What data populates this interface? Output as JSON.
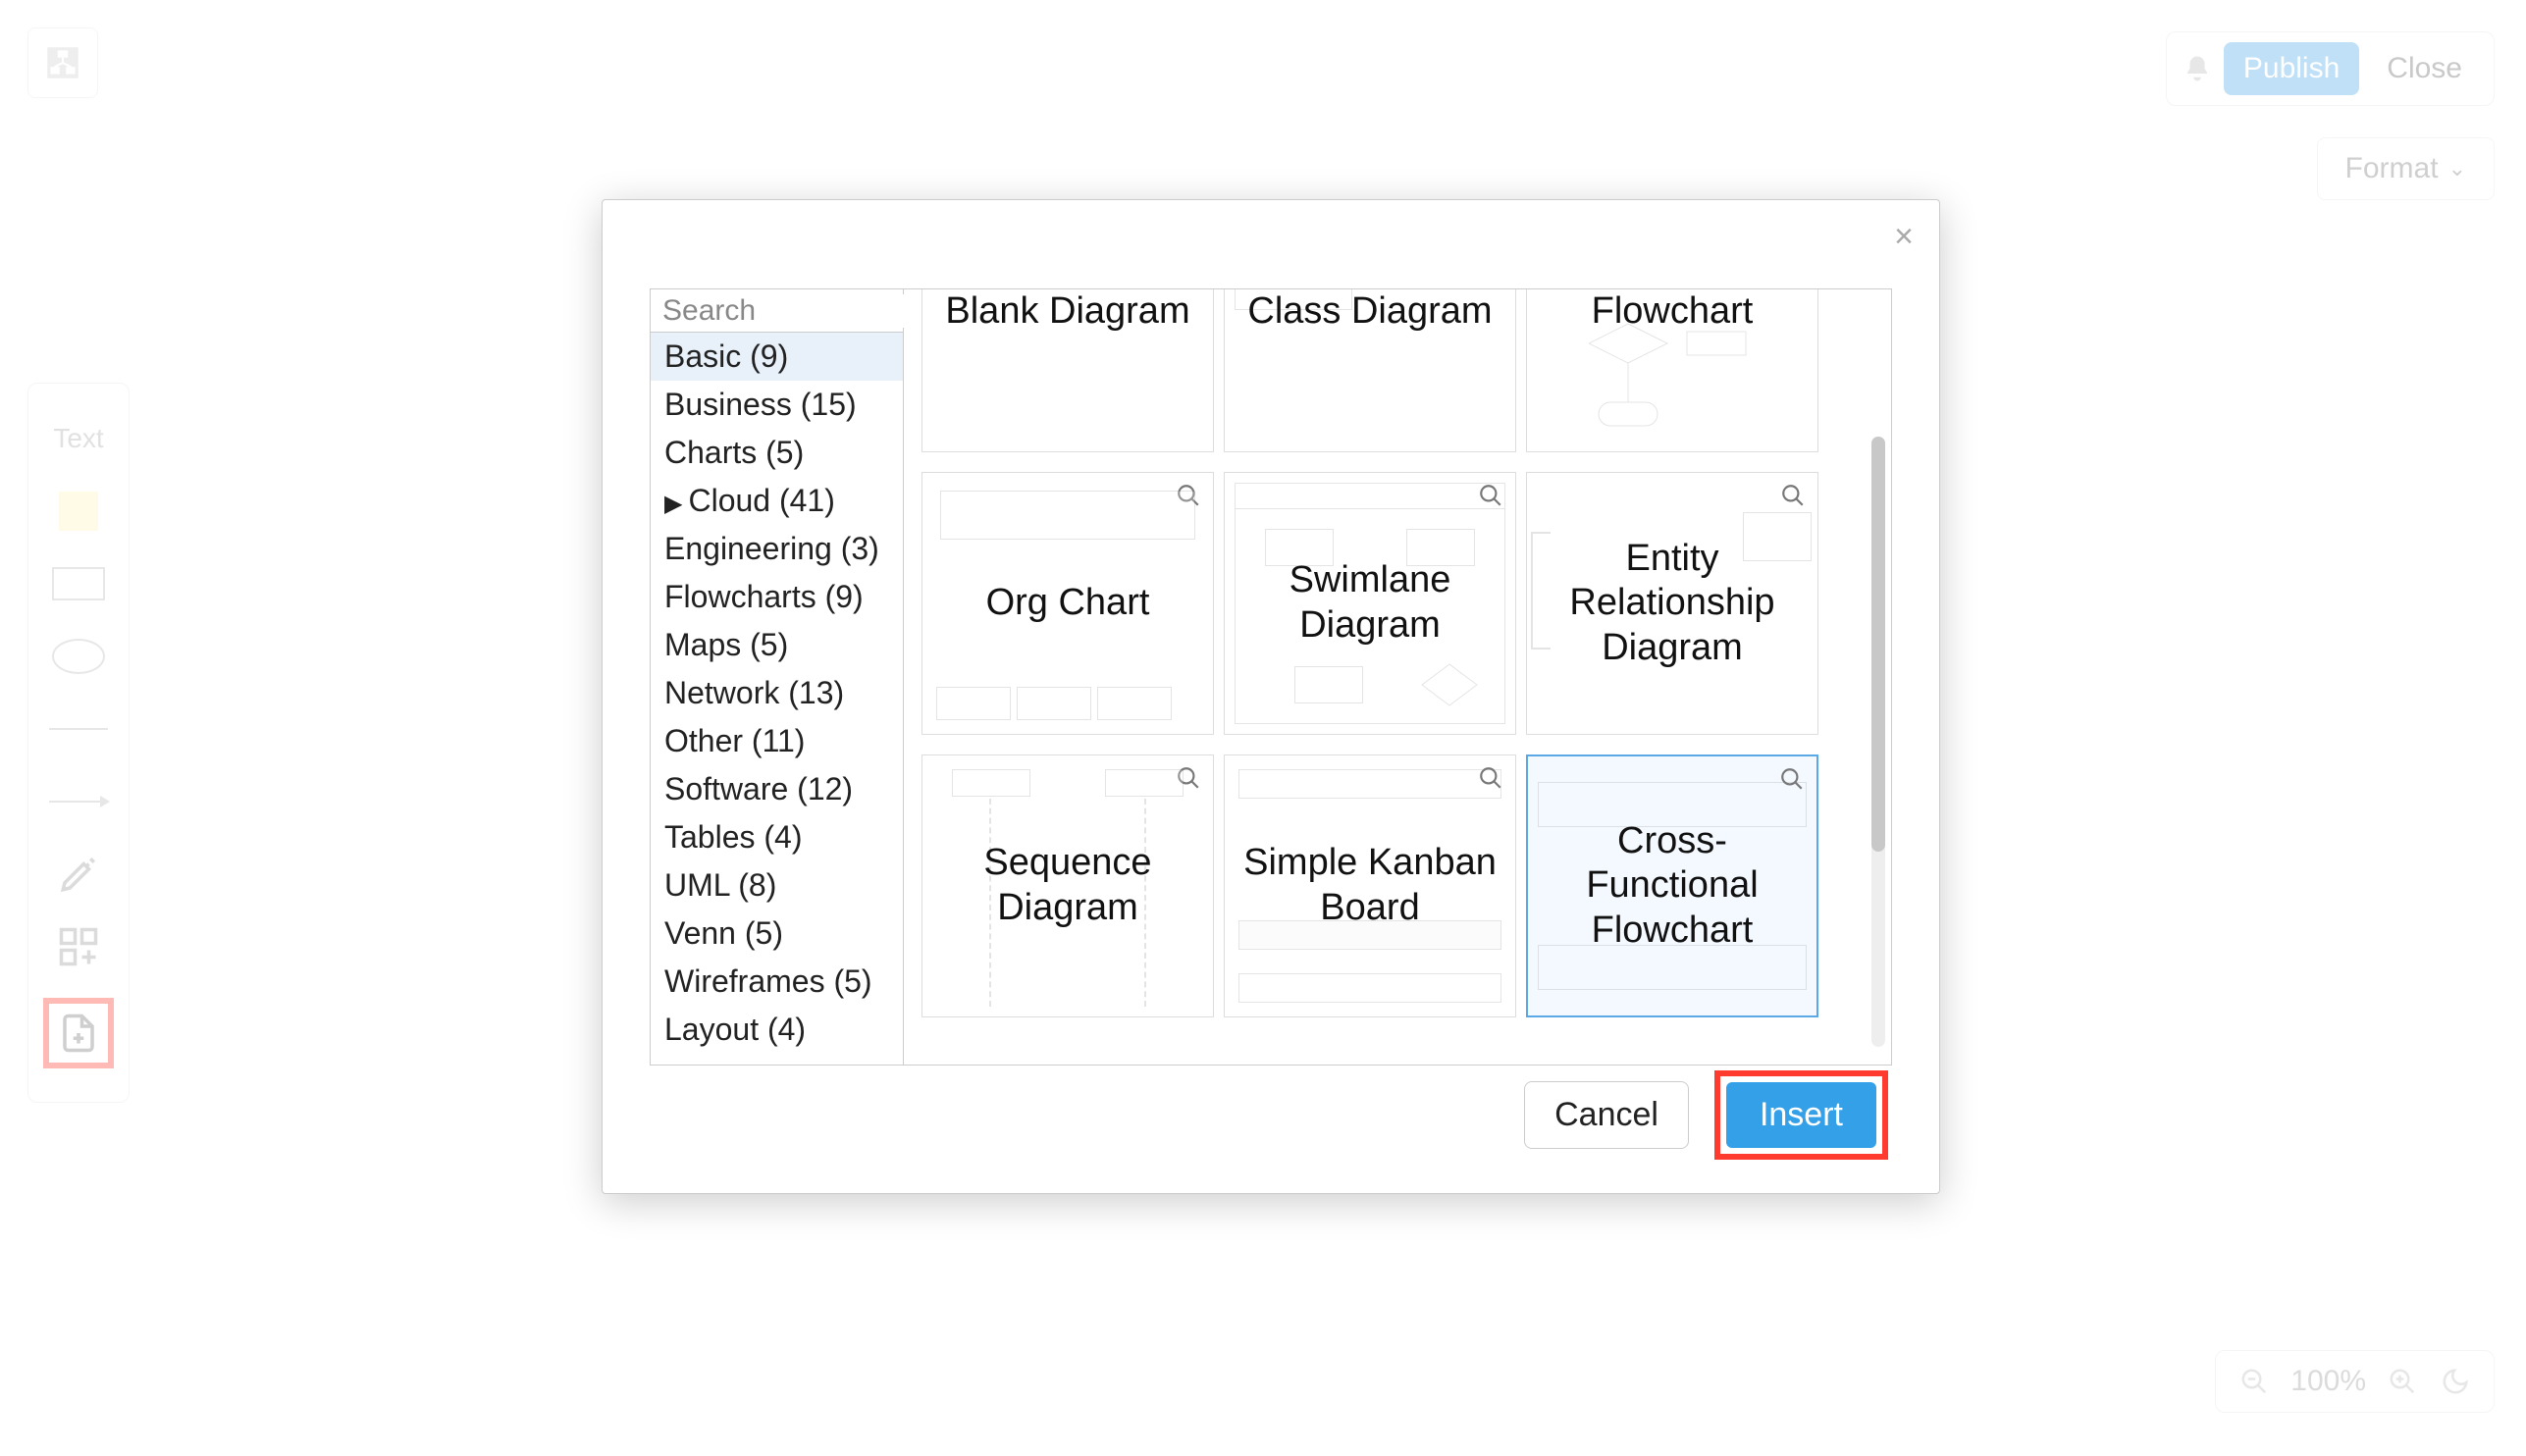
{
  "colors": {
    "accent": "#34a0e8",
    "highlight": "#ff3b30",
    "border": "#cccccc",
    "faded_border": "#e5e5e5",
    "text": "#222222",
    "muted": "#888888",
    "selected_bg": "#e8f0fa",
    "card_selected_bg": "#f3f9ff"
  },
  "topbar": {
    "publish_label": "Publish",
    "close_label": "Close"
  },
  "format_button": {
    "label": "Format"
  },
  "toolbar": {
    "text_label": "Text"
  },
  "zoom": {
    "value": "100%"
  },
  "modal": {
    "search_placeholder": "Search",
    "categories": [
      {
        "label": "Basic (9)",
        "selected": true
      },
      {
        "label": "Business (15)"
      },
      {
        "label": "Charts (5)"
      },
      {
        "label": "Cloud (41)",
        "expandable": true
      },
      {
        "label": "Engineering (3)"
      },
      {
        "label": "Flowcharts (9)"
      },
      {
        "label": "Maps (5)"
      },
      {
        "label": "Network (13)"
      },
      {
        "label": "Other (11)"
      },
      {
        "label": "Software (12)"
      },
      {
        "label": "Tables (4)"
      },
      {
        "label": "UML (8)"
      },
      {
        "label": "Venn (5)"
      },
      {
        "label": "Wireframes (5)"
      },
      {
        "label": "Layout (4)"
      }
    ],
    "templates": [
      {
        "title": "Blank Diagram"
      },
      {
        "title": "Class Diagram"
      },
      {
        "title": "Flowchart"
      },
      {
        "title": "Org Chart"
      },
      {
        "title": "Swimlane Diagram"
      },
      {
        "title": "Entity Relationship Diagram"
      },
      {
        "title": "Sequence Diagram"
      },
      {
        "title": "Simple Kanban Board"
      },
      {
        "title": "Cross-Functional Flowchart",
        "selected": true
      }
    ],
    "cancel_label": "Cancel",
    "insert_label": "Insert"
  }
}
